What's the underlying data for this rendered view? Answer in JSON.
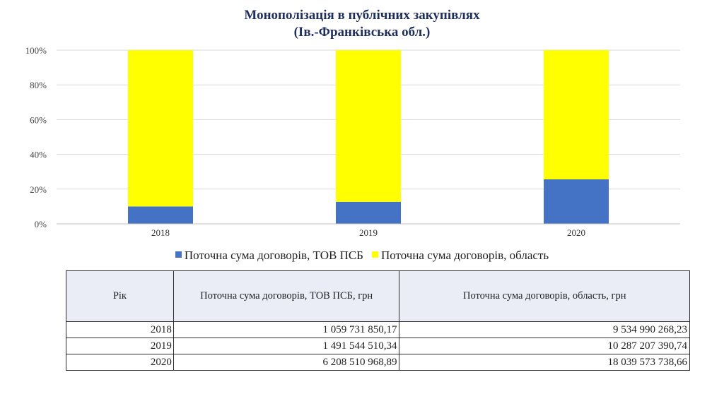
{
  "header": {
    "title_line1": "Монополізація в публічних закупівлях",
    "title_line2": "(Ів.-Франківська обл.)"
  },
  "colors": {
    "psb": "#4472c4",
    "region": "#ffff00",
    "grid": "#d9d9d9"
  },
  "chart_data": {
    "type": "bar",
    "stacked": "percent",
    "categories": [
      "2018",
      "2019",
      "2020"
    ],
    "series": [
      {
        "name": "Поточна сума договорів, ТОВ ПСБ",
        "values": [
          1059731850.17,
          1491544510.34,
          6208510968.89
        ],
        "color": "#4472c4"
      },
      {
        "name": "Поточна сума договорів, область",
        "values": [
          9534990268.23,
          10287207390.74,
          18039573738.66
        ],
        "color": "#ffff00"
      }
    ],
    "yticks": [
      "0%",
      "20%",
      "40%",
      "60%",
      "80%",
      "100%"
    ],
    "ylim": [
      0,
      100
    ],
    "grid": true,
    "legend": "bottom"
  },
  "table": {
    "headers": [
      "Рік",
      "Поточна сума договорів, ТОВ ПСБ, грн",
      "Поточна сума договорів, область, грн"
    ],
    "rows": [
      [
        "2018",
        "1 059 731 850,17",
        "9 534 990 268,23"
      ],
      [
        "2019",
        "1 491 544 510,34",
        "10 287 207 390,74"
      ],
      [
        "2020",
        "6 208 510 968,89",
        "18 039 573 738,66"
      ]
    ]
  }
}
